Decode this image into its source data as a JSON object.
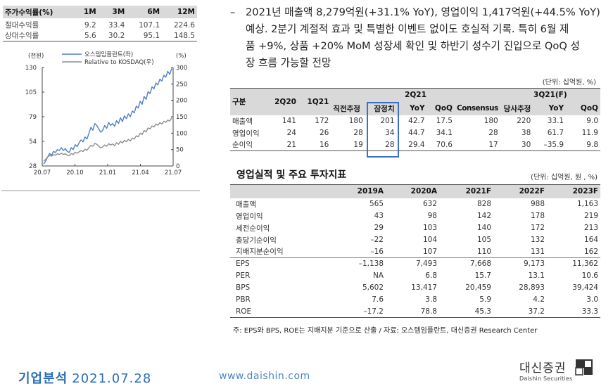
{
  "returns_table": {
    "headers": [
      "주가수익률(%)",
      "1M",
      "3M",
      "6M",
      "12M"
    ],
    "rows": [
      [
        "절대수익률",
        "9.2",
        "33.4",
        "107.1",
        "224.6"
      ],
      [
        "상대수익률",
        "5.6",
        "30.2",
        "95.1",
        "148.5"
      ]
    ]
  },
  "chart_data": {
    "type": "line",
    "left_unit": "(천원)",
    "right_unit": "(%)",
    "left_ticks": [
      "130",
      "105",
      "79",
      "54",
      "28"
    ],
    "right_ticks": [
      "300",
      "250",
      "200",
      "150",
      "100",
      "50",
      "0"
    ],
    "x_ticks": [
      "20.07",
      "20.10",
      "21.01",
      "21.04",
      "21.07"
    ],
    "ylim_left": [
      28,
      130
    ],
    "ylim_right": [
      0,
      300
    ],
    "series": [
      {
        "name": "오스템임플란트(좌)",
        "color": "#4f7fc5",
        "values": [
          30,
          33,
          37,
          41,
          39,
          43,
          42,
          45,
          44,
          47,
          44,
          46,
          43,
          42,
          47,
          45,
          50,
          48,
          52,
          55,
          53,
          58,
          56,
          62,
          68,
          65,
          72,
          70,
          66,
          63,
          65,
          70,
          67,
          73,
          70,
          72,
          69,
          75,
          72,
          78,
          74,
          80,
          77,
          82,
          79,
          85,
          83,
          90,
          88,
          95,
          92,
          100,
          97,
          105,
          103,
          110,
          108,
          114,
          112,
          118,
          116,
          122,
          120,
          126,
          123,
          129
        ]
      },
      {
        "name": "Relative to KOSDAQ(우)",
        "color": "#8c8c8c",
        "values": [
          15,
          20,
          27,
          32,
          30,
          34,
          33,
          37,
          35,
          39,
          35,
          37,
          33,
          31,
          38,
          35,
          42,
          39,
          43,
          47,
          44,
          51,
          48,
          56,
          63,
          60,
          69,
          66,
          60,
          55,
          58,
          64,
          60,
          68,
          64,
          67,
          62,
          71,
          66,
          75,
          70,
          78,
          74,
          81,
          76,
          85,
          82,
          92,
          89,
          100,
          96,
          108,
          104,
          116,
          113,
          122,
          119,
          128,
          124,
          132,
          128,
          136,
          133,
          140,
          137,
          147
        ]
      }
    ]
  },
  "commentary": {
    "dash": "–",
    "lines": [
      "2021년 매출액 8,279억원(+31.1% YoY), 영업이익 1,417억원(+44.5% YoY)",
      "예상. 2분기 계절적 효과 및 특별한 이벤트 없이도 호실적 기록. 특히 6월 제",
      "품 +9%, 상품 +20% MoM 성장세 확인 및 하반기 성수기 진입으로 QoQ 성",
      "장 흐름 가능할 전망"
    ]
  },
  "estimate_table": {
    "unit": "(단위: 십억원, %)",
    "head1": [
      "구분",
      "2Q20",
      "1Q21",
      "2Q21",
      "3Q21(F)"
    ],
    "head2": [
      "직전추정",
      "잠정치",
      "YoY",
      "QoQ",
      "Consensus",
      "당사추정",
      "YoY",
      "QoQ"
    ],
    "rows": [
      [
        "매출액",
        "141",
        "172",
        "180",
        "201",
        "42.7",
        "17.5",
        "180",
        "220",
        "33.1",
        "9.0"
      ],
      [
        "영업이익",
        "24",
        "26",
        "28",
        "34",
        "44.7",
        "34.1",
        "28",
        "38",
        "61.7",
        "11.9"
      ],
      [
        "순이익",
        "21",
        "16",
        "19",
        "28",
        "29.4",
        "70.6",
        "17",
        "30",
        "–35.9",
        "9.8"
      ]
    ]
  },
  "financials": {
    "title": "영업실적 및 주요 투자지표",
    "unit": "(단위: 십억원, 원 , %)",
    "headers": [
      "",
      "2019A",
      "2020A",
      "2021F",
      "2022F",
      "2023F"
    ],
    "rows": [
      [
        "매출액",
        "565",
        "632",
        "828",
        "988",
        "1,163"
      ],
      [
        "영업이익",
        "43",
        "98",
        "142",
        "178",
        "219"
      ],
      [
        "세전순이익",
        "29",
        "103",
        "140",
        "172",
        "213"
      ],
      [
        "총당기순이익",
        "–22",
        "104",
        "105",
        "132",
        "164"
      ],
      [
        "지배지분순이익",
        "–16",
        "107",
        "110",
        "131",
        "162"
      ],
      [
        "EPS",
        "–1,138",
        "7,493",
        "7,668",
        "9,173",
        "11,362"
      ],
      [
        "PER",
        "NA",
        "6.8",
        "15.7",
        "13.1",
        "10.6"
      ],
      [
        "BPS",
        "5,602",
        "13,417",
        "20,459",
        "28,893",
        "39,424"
      ],
      [
        "PBR",
        "7.6",
        "3.8",
        "5.9",
        "4.2",
        "3.0"
      ],
      [
        "ROE",
        "–17.2",
        "78.8",
        "45.3",
        "37.2",
        "33.3"
      ]
    ],
    "footnote": "주: EPS와 BPS, ROE는 지배지분 기준으로 산출 / 자료: 오스템임플란트, 대신증권 Research Center"
  },
  "footer": {
    "section": "기업분석",
    "date": "2021.07.28",
    "url": "www.daishin.com",
    "logo_ko": "대신증권",
    "logo_en": "Daishin Securities"
  }
}
